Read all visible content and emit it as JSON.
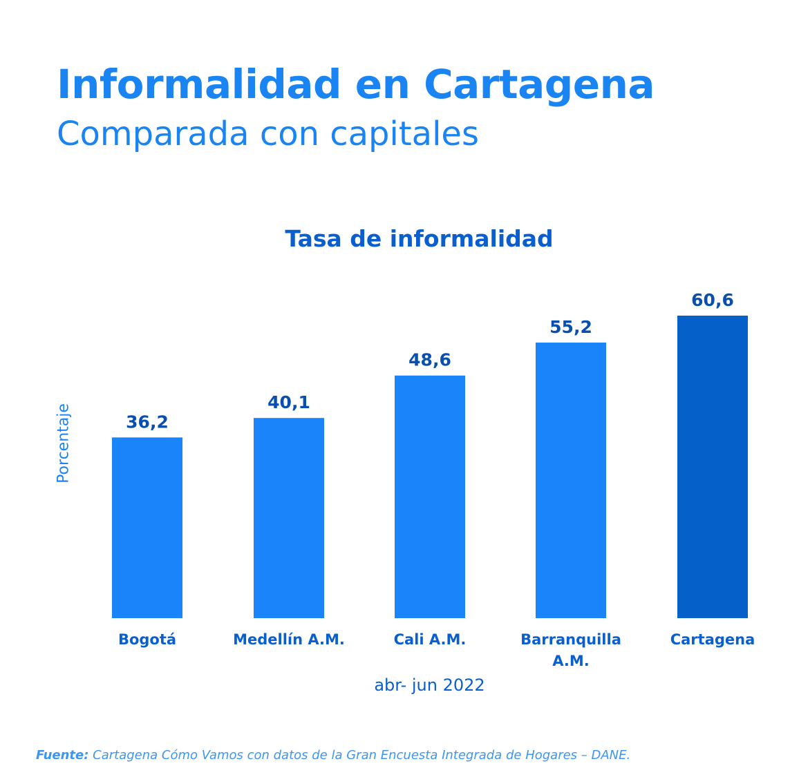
{
  "header": {
    "title": "Informalidad en Cartagena",
    "subtitle": "Comparada con capitales"
  },
  "chart_data": {
    "type": "bar",
    "title": "Tasa de informalidad",
    "xlabel": "abr- jun 2022",
    "ylabel": "Porcentaje",
    "categories": [
      [
        "Bogotá"
      ],
      [
        "Medellín A.M."
      ],
      [
        "Cali A.M."
      ],
      [
        "Barranquilla",
        "A.M."
      ],
      [
        "Cartagena"
      ]
    ],
    "values": [
      36.2,
      40.1,
      48.6,
      55.2,
      60.6
    ],
    "value_labels": [
      "36,2",
      "40,1",
      "48,6",
      "55,2",
      "60,6"
    ],
    "colors": [
      "#1a84fb",
      "#1a84fb",
      "#1a84fb",
      "#1a84fb",
      "#0561c9"
    ],
    "ylim": [
      0,
      60.6
    ],
    "grid": false,
    "legend": "none"
  },
  "footer": {
    "source_label": "Fuente:",
    "source_text": "Cartagena Cómo Vamos con datos de la Gran Encuesta Integrada de Hogares – DANE."
  }
}
